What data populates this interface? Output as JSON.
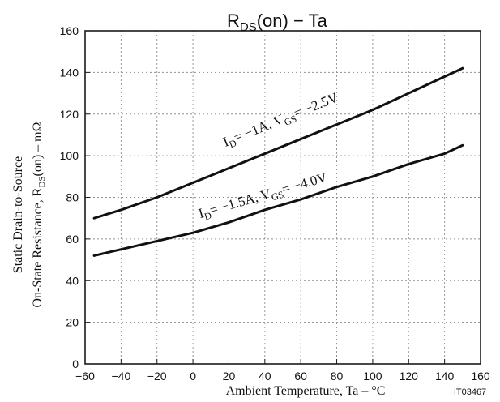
{
  "chart_data": {
    "type": "line",
    "title_main": "R",
    "title_sub": "DS",
    "title_tail": "(on)  −  Ta",
    "top_fragment_left": "",
    "top_fragment_right": "",
    "xlabel": "Ambient Temperature, Ta  –  °C",
    "ylabel_line1": "Static Drain-to-Source",
    "ylabel_line2_main": "On-State Resistance, R",
    "ylabel_line2_sub": "DS",
    "ylabel_line2_tail": "(on)  –  mΩ",
    "x_ticks": [
      -60,
      -40,
      -20,
      0,
      20,
      40,
      60,
      80,
      100,
      120,
      140,
      160
    ],
    "x_tick_labels": [
      "−60",
      "−40",
      "−20",
      "0",
      "20",
      "40",
      "60",
      "80",
      "100",
      "120",
      "140",
      "160"
    ],
    "y_ticks": [
      0,
      20,
      40,
      60,
      80,
      100,
      120,
      140,
      160
    ],
    "y_tick_labels": [
      "0",
      "20",
      "40",
      "60",
      "80",
      "100",
      "120",
      "140",
      "160"
    ],
    "xlim": [
      -60,
      160
    ],
    "ylim": [
      0,
      160
    ],
    "grid": true,
    "series": [
      {
        "name": "I_D = −1A, V_GS = −2.5V",
        "x": [
          -55,
          -40,
          -20,
          0,
          20,
          40,
          60,
          80,
          100,
          120,
          140,
          150
        ],
        "y": [
          70,
          74,
          80,
          87,
          94,
          101,
          108,
          115,
          122,
          130,
          138,
          142
        ],
        "label_parts": [
          "I",
          "D",
          "= −1A, V",
          "GS",
          "= −2.5V"
        ]
      },
      {
        "name": "I_D = −1.5A, V_GS = −4.0V",
        "x": [
          -55,
          -40,
          -20,
          0,
          20,
          40,
          60,
          80,
          100,
          120,
          140,
          150
        ],
        "y": [
          52,
          55,
          59,
          63,
          68,
          74,
          79,
          85,
          90,
          96,
          101,
          105
        ],
        "label_parts": [
          "I",
          "D",
          "= −1.5A, V",
          "GS",
          "= −4.0V"
        ]
      }
    ],
    "figure_code": "IT03467"
  }
}
